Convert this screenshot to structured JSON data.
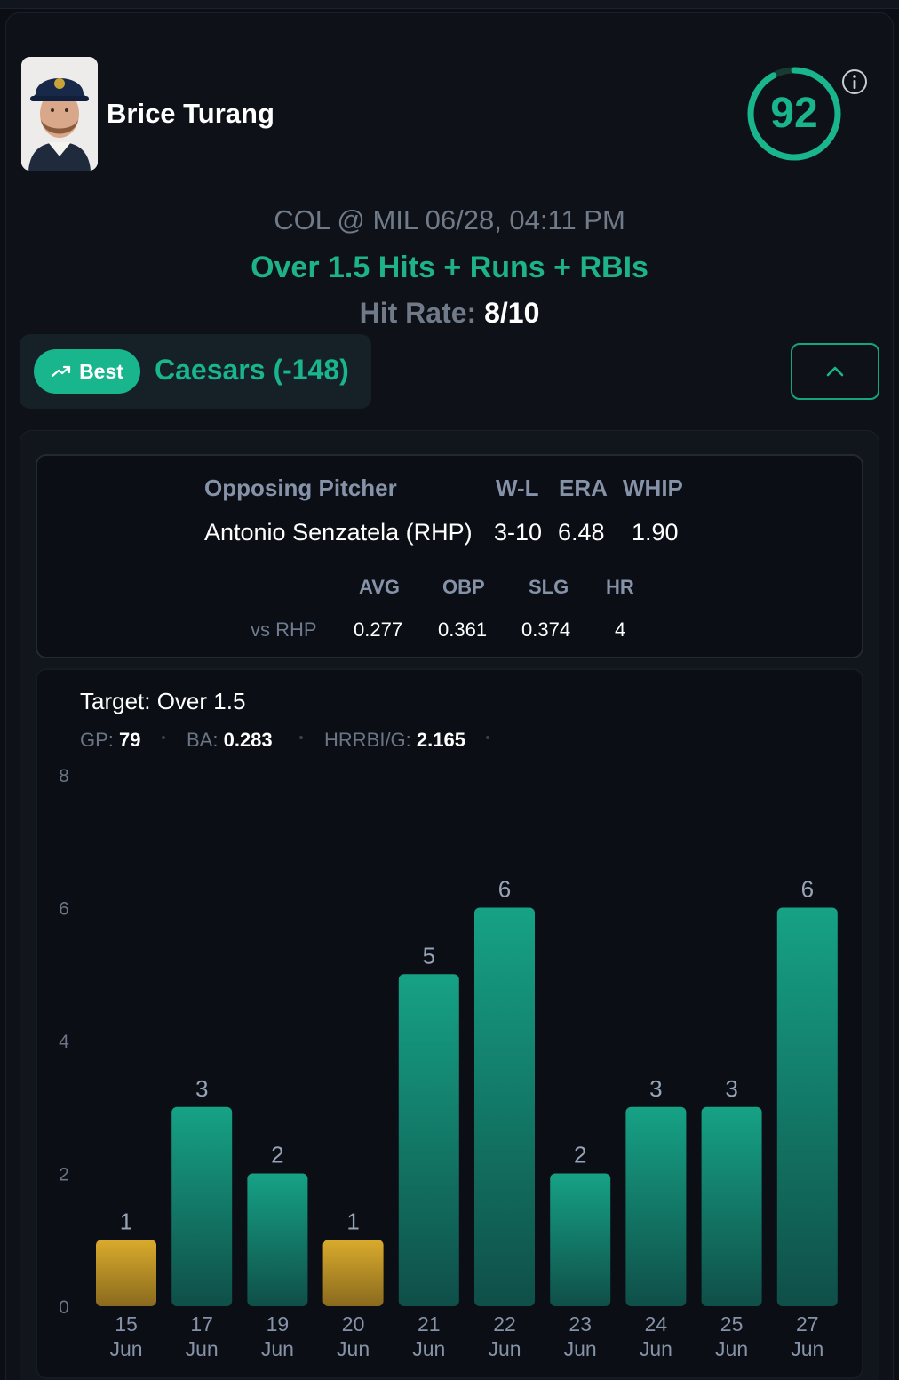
{
  "player": {
    "name": "Brice Turang",
    "avatar_icon": "player-headshot",
    "score": "92",
    "score_ring_fraction": 0.92,
    "info_icon": "info-circle-icon"
  },
  "game": {
    "matchup": "COL @ MIL 06/28, 04:11 PM",
    "prop": "Over 1.5 Hits + Runs + RBIs",
    "hit_rate_label": "Hit Rate:",
    "hit_rate_value": "8/10"
  },
  "book": {
    "best_label": "Best",
    "best_icon": "trending-up-icon",
    "name": "Caesars (-148)",
    "collapse_icon": "chevron-up-icon"
  },
  "pitcher": {
    "headers": {
      "name": "Opposing Pitcher",
      "wl": "W-L",
      "era": "ERA",
      "whip": "WHIP"
    },
    "name": "Antonio Senzatela (RHP)",
    "wl": "3-10",
    "era": "6.48",
    "whip": "1.90",
    "split_headers": {
      "avg": "AVG",
      "obp": "OBP",
      "slg": "SLG",
      "hr": "HR"
    },
    "split_label": "vs RHP",
    "split_values": {
      "avg": "0.277",
      "obp": "0.361",
      "slg": "0.374",
      "hr": "4"
    }
  },
  "summary": {
    "target": "Target: Over 1.5",
    "gp_label": "GP:",
    "gp_value": "79",
    "ba_label": "BA:",
    "ba_value": "0.283",
    "hrrbi_label": "HRRBI/G:",
    "hrrbi_value": "2.165"
  },
  "colors": {
    "accent": "#19b58d",
    "hit_bar": "#149a7c",
    "miss_bar": "#d2a62a"
  },
  "chart_data": {
    "type": "bar",
    "categories": [
      "15 Jun",
      "17 Jun",
      "19 Jun",
      "20 Jun",
      "21 Jun",
      "22 Jun",
      "23 Jun",
      "24 Jun",
      "25 Jun",
      "27 Jun"
    ],
    "values": [
      1,
      3,
      2,
      1,
      5,
      6,
      2,
      3,
      3,
      6
    ],
    "hit": [
      false,
      true,
      true,
      false,
      true,
      true,
      true,
      true,
      true,
      true
    ],
    "threshold": 1.5,
    "ylim": [
      0,
      8
    ],
    "yticks": [
      0,
      2,
      4,
      6,
      8
    ],
    "grid": false,
    "data_labels": true
  }
}
